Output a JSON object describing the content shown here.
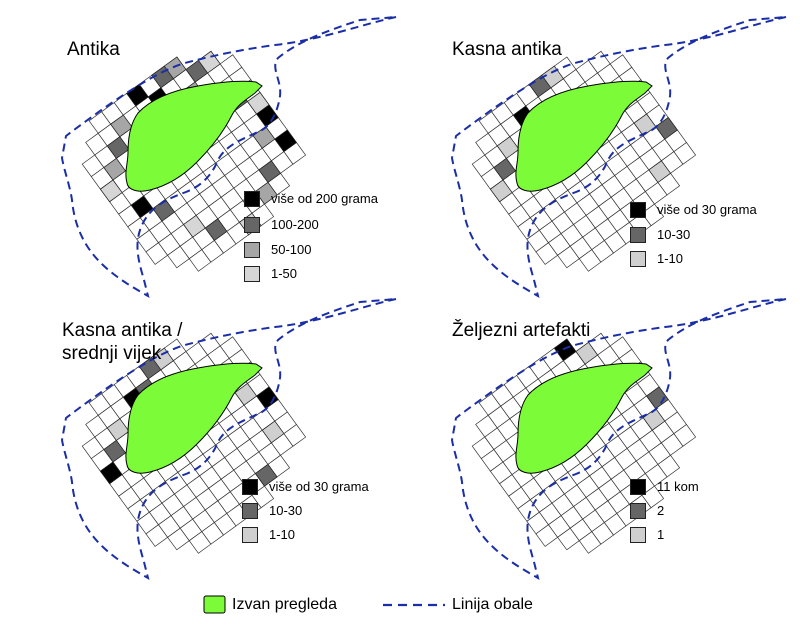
{
  "panels": [
    {
      "title": "Antika",
      "legend": [
        {
          "label": "više od 200 grama",
          "color": "#000000"
        },
        {
          "label": "100-200",
          "color": "#666666"
        },
        {
          "label": "50-100",
          "color": "#a6a6a6"
        },
        {
          "label": "1-50",
          "color": "#d6d6d6"
        }
      ]
    },
    {
      "title": "Kasna antika",
      "legend": [
        {
          "label": "više od 30 grama",
          "color": "#000000"
        },
        {
          "label": "10-30",
          "color": "#666666"
        },
        {
          "label": "1-10",
          "color": "#cfcfcf"
        }
      ]
    },
    {
      "title": "Kasna antika /",
      "title_line2": "srednji vijek",
      "legend": [
        {
          "label": "više od 30 grama",
          "color": "#000000"
        },
        {
          "label": "10-30",
          "color": "#666666"
        },
        {
          "label": "1-10",
          "color": "#cfcfcf"
        }
      ]
    },
    {
      "title": "Željezni artefakti",
      "legend": [
        {
          "label": "11 kom",
          "color": "#000000"
        },
        {
          "label": "2",
          "color": "#666666"
        },
        {
          "label": "1",
          "color": "#cfcfcf"
        }
      ]
    }
  ],
  "bottom_legend": {
    "unsurveyed_label": "Izvan pregleda",
    "unsurveyed_color": "#7cfc38",
    "coastline_label": "Linija obale",
    "coastline_color": "#1a2ea8"
  }
}
